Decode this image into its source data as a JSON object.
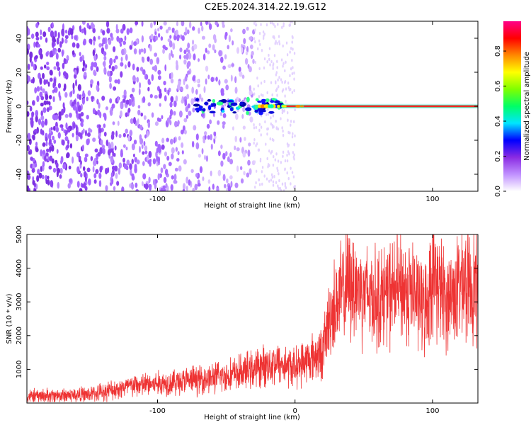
{
  "title": "C2E5.2024.314.22.19.G12",
  "chart_data": [
    {
      "type": "heatmap",
      "xlabel": "Height of straight line (km)",
      "ylabel": "Frequency (Hz)",
      "xlim": [
        -195,
        133
      ],
      "ylim": [
        -50,
        50
      ],
      "xticks": [
        -100,
        0,
        100
      ],
      "yticks": [
        -40,
        -20,
        0,
        20,
        40
      ],
      "colorbar": {
        "label": "Normalized spectral amplitude",
        "range": [
          0,
          0.97
        ],
        "ticks": [
          0.0,
          0.2,
          0.4,
          0.6,
          0.8
        ],
        "colors": [
          "#ffffff",
          "#c090ff",
          "#8a2be2",
          "#0000ff",
          "#00e5ff",
          "#00ff66",
          "#7fff00",
          "#ffff00",
          "#ff8800",
          "#ff0000",
          "#ff0088"
        ]
      },
      "features": {
        "noise_region_x": [
          -195,
          -30
        ],
        "faint_noise_x": [
          -30,
          0
        ],
        "carrier_start_x": -72,
        "carrier_frequency": 0
      }
    },
    {
      "type": "line",
      "xlabel": "Height of straight line (km)",
      "ylabel": "SNR (10 * v/v)",
      "xlim": [
        -195,
        133
      ],
      "ylim": [
        0,
        5000
      ],
      "xticks": [
        -100,
        0,
        100
      ],
      "yticks": [
        1000,
        2000,
        3000,
        4000,
        5000
      ],
      "color": "#ee3333",
      "envelope": [
        {
          "x": -195,
          "y": 200
        },
        {
          "x": -150,
          "y": 250
        },
        {
          "x": -120,
          "y": 500
        },
        {
          "x": -80,
          "y": 650
        },
        {
          "x": -50,
          "y": 800
        },
        {
          "x": -30,
          "y": 1000
        },
        {
          "x": -15,
          "y": 1200
        },
        {
          "x": 0,
          "y": 1050
        },
        {
          "x": 10,
          "y": 1300
        },
        {
          "x": 20,
          "y": 1500
        },
        {
          "x": 25,
          "y": 2500
        },
        {
          "x": 30,
          "y": 3000
        },
        {
          "x": 40,
          "y": 3600
        },
        {
          "x": 50,
          "y": 3300
        },
        {
          "x": 60,
          "y": 3100
        },
        {
          "x": 75,
          "y": 3400
        },
        {
          "x": 85,
          "y": 3300
        },
        {
          "x": 95,
          "y": 2800
        },
        {
          "x": 100,
          "y": 3900
        },
        {
          "x": 110,
          "y": 3000
        },
        {
          "x": 120,
          "y": 3500
        },
        {
          "x": 133,
          "y": 3500
        }
      ]
    }
  ]
}
